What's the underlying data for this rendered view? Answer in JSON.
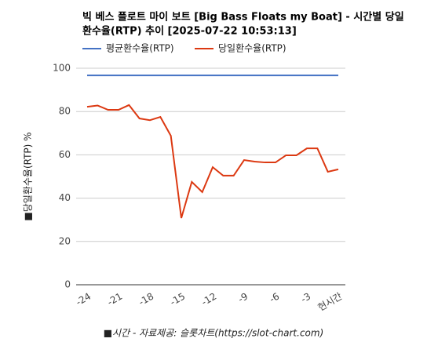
{
  "chart_data": {
    "type": "line",
    "title": [
      "빅 베스 플로트 마이 보트 [Big Bass Floats my Boat] - 시간별 당일",
      "환수율(RTP) 추이 [2025-07-22 10:53:13]"
    ],
    "y_label": "■당일환수율(RTP) %",
    "x_label": "■시간 - 자료제공: 슬롯차트(https://slot-chart.com)",
    "categories": [
      "-24",
      null,
      null,
      "-21",
      null,
      null,
      "-18",
      null,
      null,
      "-15",
      null,
      null,
      "-12",
      null,
      null,
      "-9",
      null,
      null,
      "-6",
      null,
      null,
      "-3",
      null,
      null,
      "현시간"
    ],
    "series": [
      {
        "name": "평균환수율(RTP)",
        "color": "#4472c4",
        "values": [
          96.7,
          96.7,
          96.7,
          96.7,
          96.7,
          96.7,
          96.7,
          96.7,
          96.7,
          96.7,
          96.7,
          96.7,
          96.7,
          96.7,
          96.7,
          96.7,
          96.7,
          96.7,
          96.7,
          96.7,
          96.7,
          96.7,
          96.7,
          96.7,
          96.7
        ]
      },
      {
        "name": "당일환수율(RTP)",
        "color": "#dc3912",
        "values": [
          82.2,
          82.8,
          80.8,
          80.8,
          83,
          76.8,
          76,
          77.5,
          68.8,
          30.8,
          47.5,
          42.8,
          54.3,
          50.4,
          50.4,
          57.6,
          56.9,
          56.5,
          56.5,
          59.8,
          59.8,
          63,
          63,
          52.2,
          53.3
        ]
      }
    ],
    "ylim": [
      0,
      100
    ],
    "yticks": [
      0,
      20,
      40,
      60,
      80,
      100
    ],
    "grid": true
  }
}
